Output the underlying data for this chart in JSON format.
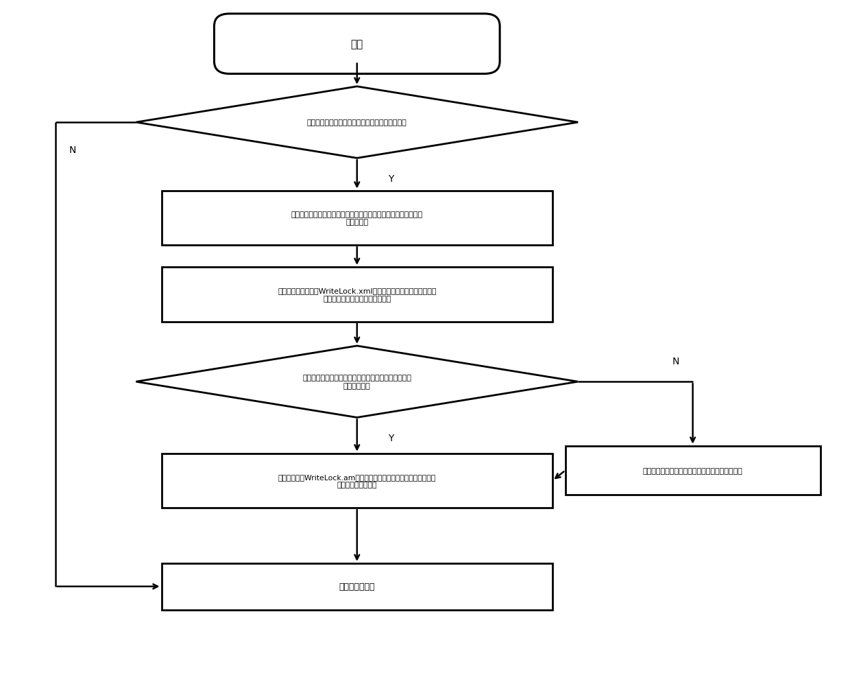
{
  "bg_color": "#ffffff",
  "line_color": "#000000",
  "box_color": "#ffffff",
  "text_color": "#000000",
  "figsize": [
    12.4,
    9.95
  ],
  "dpi": 100,
  "start_text": "开始",
  "diamond1_text": "工程师站综合模型图是否有图间连接的新增或删除",
  "box1_text": "获取图间连接关联的模型图文件信息，得到图间连接关联模型图文\n件信息列表",
  "box2_text": "打开并读取配置文件WriteLock.xml中的写下载的模型图文件信息，\n得到当前写下载的模型图文件列表",
  "diamond2_text": "综合图间可连接关联的模型图文件是否都在写下载模型\n图文件列表内",
  "box3_text": "打开配置文件WriteLock.am，将图间连接被修改的模型图文件的图间\n连接锁改标志位置位",
  "box4_text": "写下载不在写下载模型图文件列表内的模型图文件",
  "box5_text": "进行下一步开发",
  "label_N1": "N",
  "label_Y1": "Y",
  "label_N2": "N",
  "label_Y2": "Y"
}
